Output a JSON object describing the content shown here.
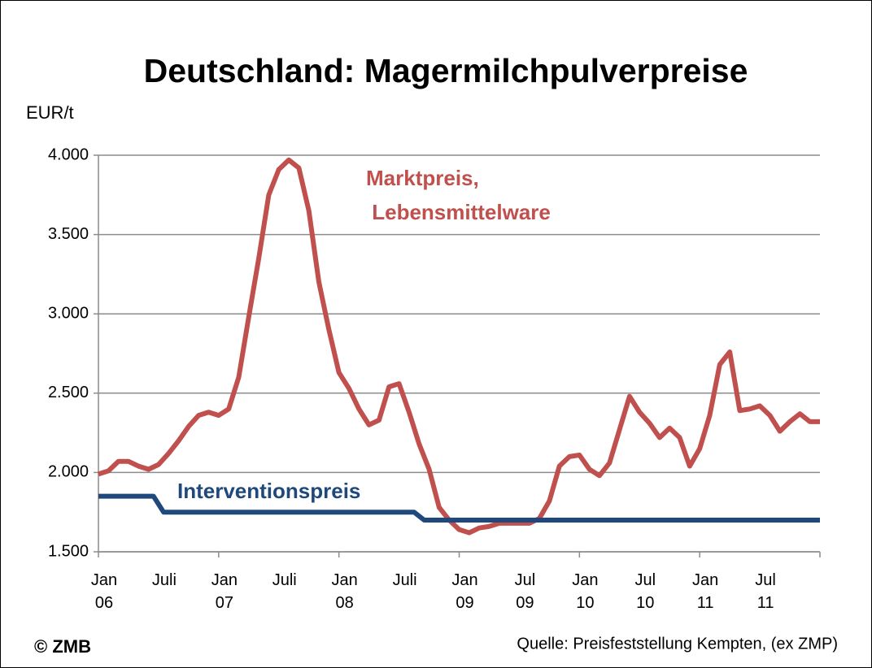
{
  "chart_data": {
    "type": "line",
    "title": "Deutschland: Magermilchpulverpreise",
    "y_label": "EUR/t",
    "source": "Quelle: Preisfeststellung Kempten, (ex ZMP)",
    "copyright": "© ZMB",
    "xlim": [
      0,
      72
    ],
    "xticks": [
      {
        "value": 0,
        "label": "Jan\n06"
      },
      {
        "value": 6,
        "label": "Juli"
      },
      {
        "value": 12,
        "label": "Jan\n07"
      },
      {
        "value": 18,
        "label": "Juli"
      },
      {
        "value": 24,
        "label": "Jan\n08"
      },
      {
        "value": 30,
        "label": "Juli"
      },
      {
        "value": 36,
        "label": "Jan\n09"
      },
      {
        "value": 42,
        "label": "Jul\n09"
      },
      {
        "value": 48,
        "label": "Jan\n10"
      },
      {
        "value": 54,
        "label": "Jul\n10"
      },
      {
        "value": 60,
        "label": "Jan\n11"
      },
      {
        "value": 66,
        "label": "Jul\n11"
      }
    ],
    "xtick_marks": [
      0,
      12,
      24,
      36,
      48,
      60,
      72
    ],
    "ylim": [
      1500,
      4000
    ],
    "yticks": [
      {
        "value": 1500,
        "label": "1.500"
      },
      {
        "value": 2000,
        "label": "2.000"
      },
      {
        "value": 2500,
        "label": "2.500"
      },
      {
        "value": 3000,
        "label": "3.000"
      },
      {
        "value": 3500,
        "label": "3.500"
      },
      {
        "value": 4000,
        "label": "4.000"
      }
    ],
    "grid": true,
    "series": [
      {
        "name": "Marktpreis,\n Lebensmittelware",
        "color": "#c0504d",
        "x": [
          0,
          1,
          2,
          3,
          4,
          5,
          6,
          7,
          8,
          9,
          10,
          11,
          12,
          13,
          14,
          15,
          16,
          17,
          18,
          19,
          20,
          21,
          22,
          23,
          24,
          25,
          26,
          27,
          28,
          29,
          30,
          31,
          32,
          33,
          34,
          35,
          36,
          37,
          38,
          39,
          40,
          41,
          42,
          43,
          44,
          45,
          46,
          47,
          48,
          49,
          50,
          51,
          52,
          53,
          54,
          55,
          56,
          57,
          58,
          59,
          60,
          61,
          62,
          63,
          64,
          65,
          66,
          67,
          68,
          69,
          70,
          71,
          72
        ],
        "values": [
          1990,
          2010,
          2070,
          2070,
          2040,
          2020,
          2050,
          2120,
          2200,
          2290,
          2360,
          2380,
          2360,
          2400,
          2600,
          2980,
          3350,
          3750,
          3910,
          3970,
          3920,
          3650,
          3200,
          2900,
          2630,
          2530,
          2400,
          2300,
          2330,
          2540,
          2560,
          2380,
          2180,
          2020,
          1780,
          1700,
          1640,
          1620,
          1650,
          1660,
          1680,
          1680,
          1680,
          1680,
          1710,
          1820,
          2040,
          2100,
          2110,
          2020,
          1980,
          2060,
          2270,
          2480,
          2380,
          2310,
          2220,
          2280,
          2220,
          2040,
          2150,
          2360,
          2680,
          2760,
          2390,
          2400,
          2420,
          2360,
          2260,
          2320,
          2370,
          2320,
          2320
        ]
      },
      {
        "name": "Interventionspreis",
        "color": "#1f497d",
        "x": [
          0,
          5.5,
          6.5,
          31.5,
          32.5,
          72
        ],
        "values": [
          1850,
          1850,
          1750,
          1750,
          1700,
          1700
        ]
      }
    ]
  }
}
